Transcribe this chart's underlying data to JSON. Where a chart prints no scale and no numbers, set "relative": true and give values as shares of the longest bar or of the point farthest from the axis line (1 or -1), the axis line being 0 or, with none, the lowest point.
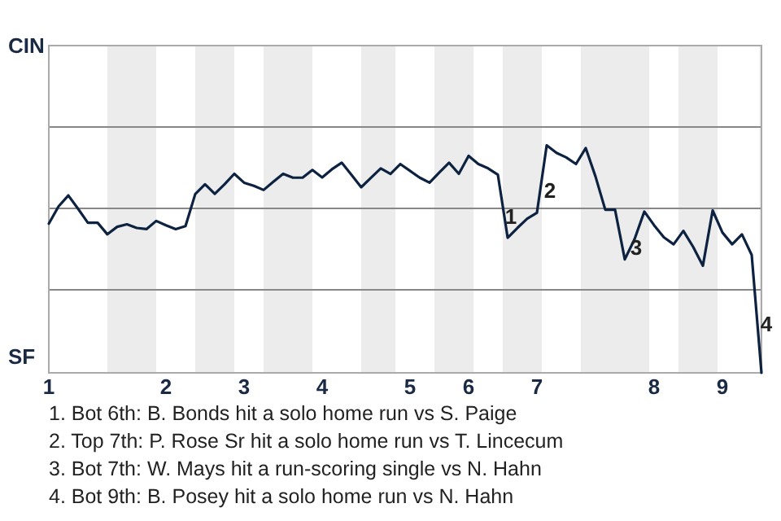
{
  "chart_data": {
    "type": "line",
    "relative": true,
    "categories": [
      "1",
      null,
      null,
      null,
      null,
      null,
      null,
      null,
      null,
      null,
      null,
      null,
      "2",
      null,
      null,
      null,
      null,
      null,
      null,
      null,
      "3",
      null,
      null,
      null,
      null,
      null,
      null,
      null,
      "4",
      null,
      null,
      null,
      null,
      null,
      null,
      null,
      null,
      "5",
      null,
      null,
      null,
      null,
      null,
      "6",
      null,
      null,
      null,
      null,
      null,
      null,
      "7",
      null,
      null,
      null,
      null,
      null,
      null,
      null,
      null,
      null,
      null,
      null,
      "8",
      null,
      null,
      null,
      null,
      null,
      null,
      "9",
      null,
      null,
      null,
      null
    ],
    "series": [
      {
        "color": "#0d2240",
        "values": [
          0.656,
          0.732,
          0.78,
          0.721,
          0.66,
          0.66,
          0.609,
          0.642,
          0.653,
          0.637,
          0.632,
          0.668,
          0.649,
          0.632,
          0.645,
          0.786,
          0.829,
          0.787,
          0.829,
          0.875,
          0.836,
          0.822,
          0.804,
          0.84,
          0.875,
          0.858,
          0.858,
          0.892,
          0.859,
          0.895,
          0.924,
          0.871,
          0.816,
          0.858,
          0.899,
          0.875,
          0.918,
          0.888,
          0.858,
          0.836,
          0.881,
          0.924,
          0.875,
          0.954,
          0.918,
          0.899,
          0.871,
          0.594,
          0.637,
          0.678,
          0.704,
          1,
          0.967,
          0.947,
          0.918,
          0.988,
          0.863,
          0.717,
          0.717,
          0.499,
          0.588,
          0.709,
          0.649,
          0.596,
          0.565,
          0.624,
          0.554,
          0.471,
          0.714,
          0.617,
          0.565,
          0.609,
          0.518,
          0
        ]
      }
    ],
    "ref_lines": [
      {
        "axis": "y",
        "value": 0.365,
        "color": "#888888"
      },
      {
        "axis": "y",
        "value": 0.723,
        "color": "#888888"
      },
      {
        "axis": "y",
        "value": 1.081,
        "color": "#888888"
      }
    ],
    "annotations": [
      "CIN",
      "SF",
      "1",
      "2",
      "3",
      "4",
      "1. Bot 6th: B. Bonds hit a solo home run vs S. Paige",
      "2. Top 7th: P. Rose Sr hit a solo home run vs T. Lincecum",
      "3. Bot 7th: W. Mays hit a run-scoring single vs N. Hahn",
      "4. Bot 9th: B. Posey hit a solo home run vs N. Hahn"
    ],
    "marker": "none",
    "line_style": "solid"
  }
}
